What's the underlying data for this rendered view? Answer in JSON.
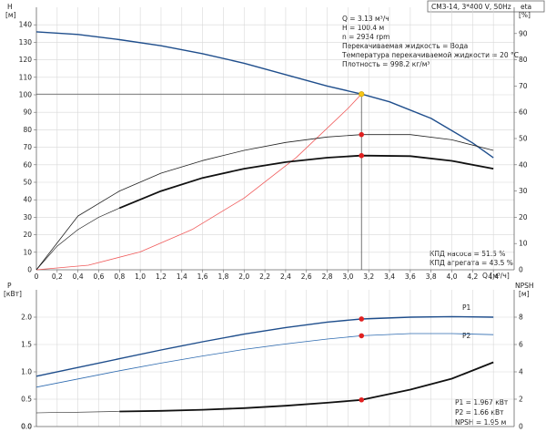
{
  "title_box": "CM3-14, 3*400 V, 50Hz",
  "top": {
    "left_axis_label": "H",
    "left_axis_unit": "[м]",
    "right_axis_label": "eta",
    "right_axis_unit": "[%]",
    "x_axis_label": "Q [м³/ч]",
    "info_lines": [
      "Q = 3.13 м³/ч",
      "H = 100.4 м",
      "n = 2934 rpm",
      "Перекачиваемая жидкость = Вода",
      "Температура перекачиваемой жидкости = 20 °C",
      "Плотность = 998.2 кг/м³"
    ],
    "eff_lines": [
      "КПД насоса = 51.5 %",
      "КПД агрегата = 43.5 %"
    ]
  },
  "bottom": {
    "left_axis_label": "P",
    "left_axis_unit": "[кВт]",
    "right_axis_label": "NPSH",
    "right_axis_unit": "[м]",
    "curve_labels": [
      "P1",
      "P2"
    ],
    "info_lines": [
      "P1 = 1.967 кВт",
      "P2 = 1.66 кВт",
      "NPSH = 1.95 м"
    ]
  },
  "chart_data": [
    {
      "type": "line",
      "panel": "top",
      "x_ticks": [
        0.2,
        0.4,
        0.6,
        0.8,
        1.0,
        1.2,
        1.4,
        1.6,
        1.8,
        2.0,
        2.2,
        2.4,
        2.6,
        2.8,
        3.0,
        3.2,
        3.4,
        3.6,
        3.8,
        4.0,
        4.2,
        4.4
      ],
      "xlim": [
        0,
        4.6
      ],
      "y_left_ticks": [
        10,
        20,
        30,
        40,
        50,
        60,
        70,
        80,
        90,
        100,
        110,
        120,
        130,
        140
      ],
      "ylim_left": [
        0,
        150
      ],
      "y_right_ticks": [
        10,
        20,
        30,
        40,
        50,
        60,
        70,
        80,
        90
      ],
      "ylim_right": [
        0,
        100
      ],
      "grid": true,
      "duty_point": {
        "x": 3.13,
        "y": 100.4
      },
      "series": [
        {
          "axis": "left",
          "color": "#1f4e8c",
          "width": 1.4,
          "x": [
            0,
            0.4,
            0.8,
            1.2,
            1.6,
            2.0,
            2.4,
            2.8,
            3.13,
            3.4,
            3.8,
            4.2,
            4.4
          ],
          "y": [
            136,
            134.5,
            131.5,
            128,
            123.5,
            118,
            111.5,
            105,
            100.4,
            96,
            86.5,
            72.5,
            64
          ]
        },
        {
          "axis": "left",
          "color": "#f05a5a",
          "width": 0.8,
          "x": [
            0,
            0.5,
            1.0,
            1.5,
            2.0,
            2.5,
            3.0,
            3.13
          ],
          "y": [
            0,
            2.6,
            10.2,
            23,
            41,
            64,
            92.2,
            100.4
          ]
        },
        {
          "axis": "right",
          "color": "#222222",
          "width": 0.8,
          "x": [
            0,
            0.4,
            0.8,
            1.2,
            1.6,
            2.0,
            2.4,
            2.8,
            3.13,
            3.6,
            4.0,
            4.4
          ],
          "y": [
            0,
            20.5,
            30,
            36.8,
            41.6,
            45.5,
            48.5,
            50.6,
            51.5,
            51.5,
            49.5,
            45.5
          ]
        },
        {
          "axis": "right",
          "color": "#111111",
          "width": 1.8,
          "x": [
            0.8,
            1.2,
            1.6,
            2.0,
            2.4,
            2.8,
            3.13,
            3.6,
            4.0,
            4.4
          ],
          "y": [
            23.5,
            30,
            35,
            38.5,
            41,
            42.7,
            43.5,
            43.3,
            41.5,
            38.5
          ]
        },
        {
          "axis": "right",
          "color": "#111111",
          "width": 0.6,
          "x": [
            0,
            0.2,
            0.4,
            0.6,
            0.8
          ],
          "y": [
            0,
            9,
            15.3,
            20,
            23.5
          ]
        }
      ],
      "markers": [
        {
          "axis": "left",
          "x": 3.13,
          "y": 100.4,
          "color": "#f5c518"
        },
        {
          "axis": "right",
          "x": 3.13,
          "y": 51.5,
          "color": "#e02020"
        },
        {
          "axis": "right",
          "x": 3.13,
          "y": 43.5,
          "color": "#e02020"
        }
      ]
    },
    {
      "type": "line",
      "panel": "bottom",
      "xlim": [
        0,
        4.6
      ],
      "y_left_ticks": [
        0.0,
        0.5,
        1.0,
        1.5,
        2.0
      ],
      "ylim_left": [
        0,
        2.5
      ],
      "y_right_ticks": [
        2,
        4,
        6,
        8
      ],
      "ylim_right": [
        0,
        10
      ],
      "grid": true,
      "series": [
        {
          "name": "P1",
          "axis": "left",
          "color": "#1f4e8c",
          "width": 1.4,
          "x": [
            0,
            0.4,
            0.8,
            1.2,
            1.6,
            2.0,
            2.4,
            2.8,
            3.13,
            3.6,
            4.0,
            4.4
          ],
          "y": [
            0.92,
            1.08,
            1.24,
            1.4,
            1.55,
            1.69,
            1.81,
            1.91,
            1.967,
            2.0,
            2.01,
            2.0
          ]
        },
        {
          "name": "P2",
          "axis": "left",
          "color": "#2e6bb0",
          "width": 0.8,
          "x": [
            0,
            0.4,
            0.8,
            1.2,
            1.6,
            2.0,
            2.4,
            2.8,
            3.13,
            3.6,
            4.0,
            4.4
          ],
          "y": [
            0.72,
            0.87,
            1.02,
            1.16,
            1.29,
            1.41,
            1.51,
            1.6,
            1.66,
            1.7,
            1.7,
            1.68
          ]
        },
        {
          "name": "NPSH",
          "axis": "right",
          "color": "#111111",
          "width": 1.8,
          "x": [
            0.8,
            1.2,
            1.6,
            2.0,
            2.4,
            2.8,
            3.13,
            3.6,
            4.0,
            4.4
          ],
          "y": [
            1.1,
            1.15,
            1.23,
            1.35,
            1.52,
            1.74,
            1.95,
            2.7,
            3.5,
            4.7
          ]
        },
        {
          "axis": "right",
          "color": "#111111",
          "width": 0.6,
          "x": [
            0,
            0.8
          ],
          "y": [
            1.0,
            1.1
          ]
        }
      ],
      "markers": [
        {
          "axis": "left",
          "x": 3.13,
          "y": 1.967,
          "color": "#e02020"
        },
        {
          "axis": "left",
          "x": 3.13,
          "y": 1.66,
          "color": "#e02020"
        },
        {
          "axis": "right",
          "x": 3.13,
          "y": 1.95,
          "color": "#e02020"
        }
      ]
    }
  ]
}
